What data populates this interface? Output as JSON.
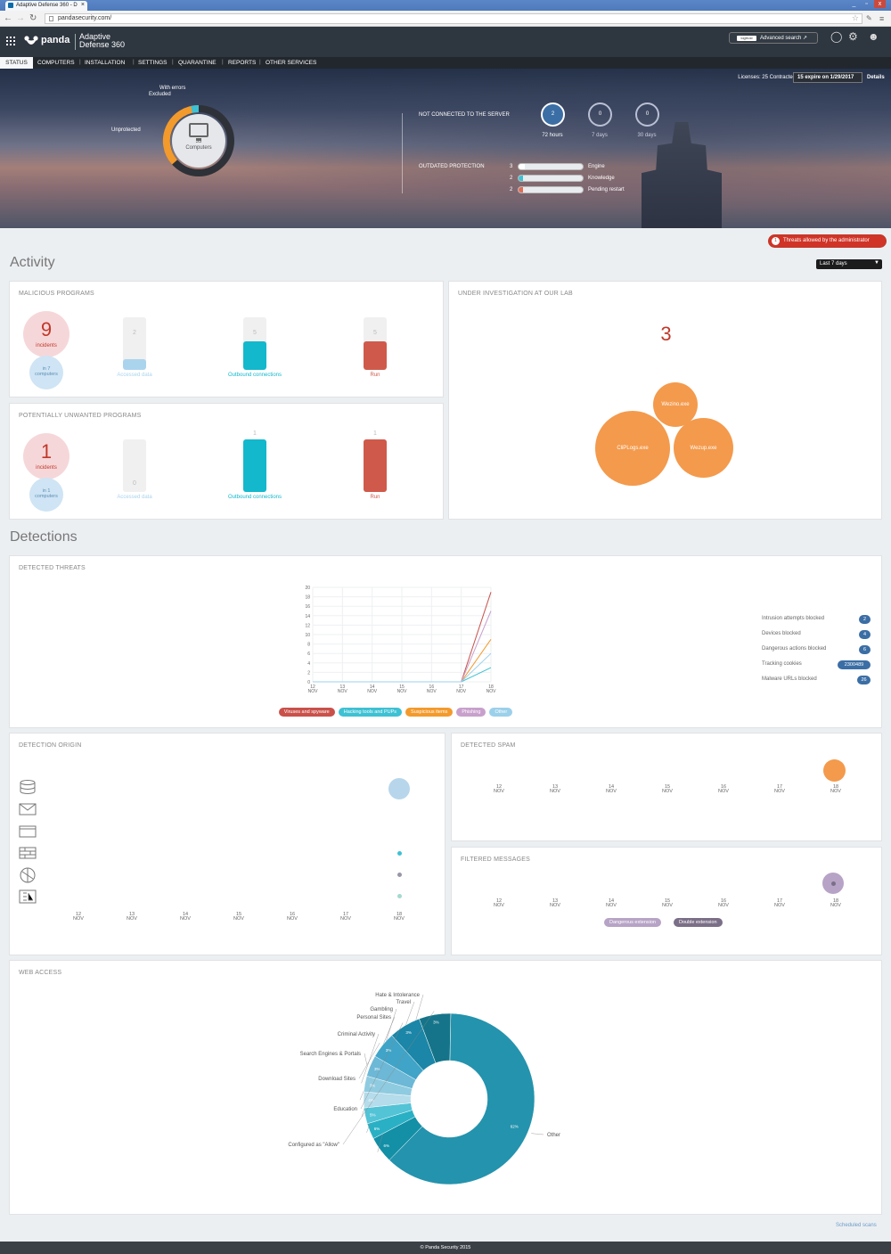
{
  "browser": {
    "tab_title": "Adaptive Defense 360 - D",
    "tab_close": "×",
    "url": "pandasecurity.com/",
    "win_min": "_",
    "win_max": "▫",
    "win_close": "x"
  },
  "header": {
    "logo": "panda",
    "product_line1": "Adaptive",
    "product_line2": "Defense 360",
    "advanced_search": "Advanced search",
    "adv_logo": "logtrust"
  },
  "menu": {
    "status": "STATUS",
    "items": [
      "COMPUTERS",
      "INSTALLATION",
      "SETTINGS",
      "QUARANTINE",
      "REPORTS",
      "OTHER SERVICES"
    ]
  },
  "hero": {
    "licenses": "Licenses: 25 Contracted",
    "license_badge": "15 expire on 1/29/2017",
    "details": "Details",
    "with_errors": "With errors",
    "excluded": "Excluded",
    "unprotected": "Unprotected",
    "computers_count": "33",
    "computers_label": "Computers",
    "not_connected_label": "NOT CONNECTED TO THE SERVER",
    "not_connected": [
      {
        "value": "2",
        "label": "72 hours"
      },
      {
        "value": "0",
        "label": "7 days"
      },
      {
        "value": "0",
        "label": "30 days"
      }
    ],
    "outdated_label": "OUTDATED PROTECTION",
    "outdated": [
      {
        "count": "3",
        "label": "Engine",
        "fraction": 0.1,
        "color": "#ffffff"
      },
      {
        "count": "2",
        "label": "Knowledge",
        "fraction": 0.07,
        "color": "#3ec1d3"
      },
      {
        "count": "2",
        "label": "Pending restart",
        "fraction": 0.07,
        "color": "#e06c55"
      }
    ]
  },
  "activity": {
    "title": "Activity",
    "threats_count": "1",
    "threats_label": "Threats allowed by the administrator",
    "period": "Last 7 days",
    "period_caret": "▼",
    "malicious": {
      "title": "MALICIOUS PROGRAMS",
      "incidents": "9",
      "incidents_label": "incidents",
      "computers_line1": "in 7",
      "computers_line2": "computers",
      "bars": [
        {
          "value": "2",
          "label": "Accessed data",
          "fraction": 0.2,
          "color": "#aad4ee",
          "label_color": "#aad4ee"
        },
        {
          "value": "5",
          "label": "Outbound connections",
          "fraction": 0.55,
          "color": "#13b8cc",
          "label_color": "#13b8cc"
        },
        {
          "value": "5",
          "label": "Run",
          "fraction": 0.55,
          "color": "#cf5a4b",
          "label_color": "#cf5a4b"
        }
      ]
    },
    "pup": {
      "title": "POTENTIALLY UNWANTED PROGRAMS",
      "incidents": "1",
      "incidents_label": "incidents",
      "computers_line1": "in 1",
      "computers_line2": "computers",
      "bars": [
        {
          "value": "0",
          "label": "Accessed data",
          "fraction": 0,
          "color": "#aad4ee",
          "label_color": "#aad4ee"
        },
        {
          "value": "1",
          "label": "Outbound connections",
          "fraction": 1,
          "color": "#13b8cc",
          "label_color": "#13b8cc"
        },
        {
          "value": "1",
          "label": "Run",
          "fraction": 1,
          "color": "#cf5a4b",
          "label_color": "#cf5a4b"
        }
      ]
    },
    "investigation": {
      "title": "UNDER INVESTIGATION AT OUR LAB",
      "count": "3",
      "bubbles": [
        "Wezino.exe",
        "CliPLogs.exe",
        "Wezup.exe"
      ]
    }
  },
  "detections": {
    "title": "Detections",
    "threats": {
      "title": "DETECTED THREATS",
      "stats": [
        {
          "label": "Intrusion attempts blocked",
          "value": "2"
        },
        {
          "label": "Devices blocked",
          "value": "4"
        },
        {
          "label": "Dangerous actions blocked",
          "value": "6"
        },
        {
          "label": "Tracking cookies",
          "value": "2300489"
        },
        {
          "label": "Malware URLs blocked",
          "value": "26"
        }
      ]
    },
    "origin": {
      "title": "DETECTION ORIGIN"
    },
    "spam": {
      "title": "DETECTED SPAM"
    },
    "filtered": {
      "title": "FILTERED MESSAGES",
      "legend": [
        "Dangerous extension",
        "Double extension"
      ]
    },
    "web": {
      "title": "WEB ACCESS",
      "categories": [
        "Hate & Intolerance",
        "Travel",
        "Gambling",
        "Personal Sites",
        "Criminal Activity",
        "Search Engines & Portals",
        "Download Sites",
        "Education",
        "Configured as \"Allow\"",
        "Other"
      ],
      "slice_labels": [
        "6%",
        "6%",
        "5%",
        "4%",
        "3%",
        "3%",
        "3%",
        "3%",
        "62%"
      ]
    }
  },
  "date_ticks": [
    {
      "day": "12",
      "month": "NOV"
    },
    {
      "day": "13",
      "month": "NOV"
    },
    {
      "day": "14",
      "month": "NOV"
    },
    {
      "day": "15",
      "month": "NOV"
    },
    {
      "day": "16",
      "month": "NOV"
    },
    {
      "day": "17",
      "month": "NOV"
    },
    {
      "day": "18",
      "month": "NOV"
    }
  ],
  "chart_data": [
    {
      "type": "line",
      "title": "DETECTED THREATS",
      "x": [
        "12 NOV",
        "13 NOV",
        "14 NOV",
        "15 NOV",
        "16 NOV",
        "17 NOV",
        "18 NOV"
      ],
      "ylim": [
        0,
        20
      ],
      "yticks": [
        "0",
        "2",
        "4",
        "6",
        "8",
        "10",
        "12",
        "14",
        "16",
        "18",
        "20"
      ],
      "series": [
        {
          "name": "Viruses and spyware",
          "color": "#c9514a",
          "values": [
            0,
            0,
            0,
            0,
            0,
            0,
            19
          ]
        },
        {
          "name": "Hacking tools and PUPs",
          "color": "#3ec1d3",
          "values": [
            0,
            0,
            0,
            0,
            0,
            0,
            3
          ]
        },
        {
          "name": "Suspicious items",
          "color": "#f39a2c",
          "values": [
            0,
            0,
            0,
            0,
            0,
            0,
            9
          ]
        },
        {
          "name": "Phishing",
          "color": "#c8a0cc",
          "values": [
            0,
            0,
            0,
            0,
            0,
            0,
            15
          ]
        },
        {
          "name": "Other",
          "color": "#9bd0ea",
          "values": [
            0,
            0,
            0,
            0,
            0,
            0,
            6
          ]
        }
      ],
      "grid": true,
      "legend": "bottom"
    },
    {
      "type": "scatter",
      "title": "DETECTION ORIGIN",
      "x": [
        "12 NOV",
        "13 NOV",
        "14 NOV",
        "15 NOV",
        "16 NOV",
        "17 NOV",
        "18 NOV"
      ],
      "rows": [
        "database-icon",
        "mail-icon",
        "browser-icon",
        "firewall-icon",
        "network-icon",
        "exchange-icon"
      ],
      "points": [
        {
          "x": "18 NOV",
          "row": 0,
          "size": "large",
          "color": "#b7d6eb"
        },
        {
          "x": "18 NOV",
          "row": 3,
          "size": "small",
          "color": "#3ec1d3"
        },
        {
          "x": "18 NOV",
          "row": 4,
          "size": "small",
          "color": "#9a95a8"
        },
        {
          "x": "18 NOV",
          "row": 5,
          "size": "small",
          "color": "#a6d8d2"
        }
      ]
    },
    {
      "type": "scatter",
      "title": "DETECTED SPAM",
      "x": [
        "12 NOV",
        "13 NOV",
        "14 NOV",
        "15 NOV",
        "16 NOV",
        "17 NOV",
        "18 NOV"
      ],
      "points": [
        {
          "x": "18 NOV",
          "size": "large",
          "color": "#f49a4c"
        }
      ]
    },
    {
      "type": "scatter",
      "title": "FILTERED MESSAGES",
      "x": [
        "12 NOV",
        "13 NOV",
        "14 NOV",
        "15 NOV",
        "16 NOV",
        "17 NOV",
        "18 NOV"
      ],
      "series": [
        {
          "name": "Dangerous extension",
          "color": "#b7a3c6"
        },
        {
          "name": "Double extension",
          "color": "#7b6f87"
        }
      ],
      "points": [
        {
          "x": "18 NOV",
          "size": "large",
          "color": "#b7a3c6"
        }
      ]
    },
    {
      "type": "pie",
      "title": "WEB ACCESS",
      "categories": [
        "Other",
        "Configured as \"Allow\"",
        "Education",
        "Download Sites",
        "Search Engines & Portals",
        "Criminal Activity",
        "Personal Sites",
        "Gambling",
        "Travel",
        "Hate & Intolerance"
      ],
      "values": [
        62,
        6,
        6,
        5,
        4,
        3,
        3,
        3,
        3,
        5
      ],
      "colors": [
        "#2493ad",
        "#157489",
        "#1b86a7",
        "#3fa4c8",
        "#6cb8d6",
        "#8fcbe0",
        "#b4dcea",
        "#53c3d6",
        "#2ab0c4",
        "#138fa6"
      ]
    }
  ]
}
